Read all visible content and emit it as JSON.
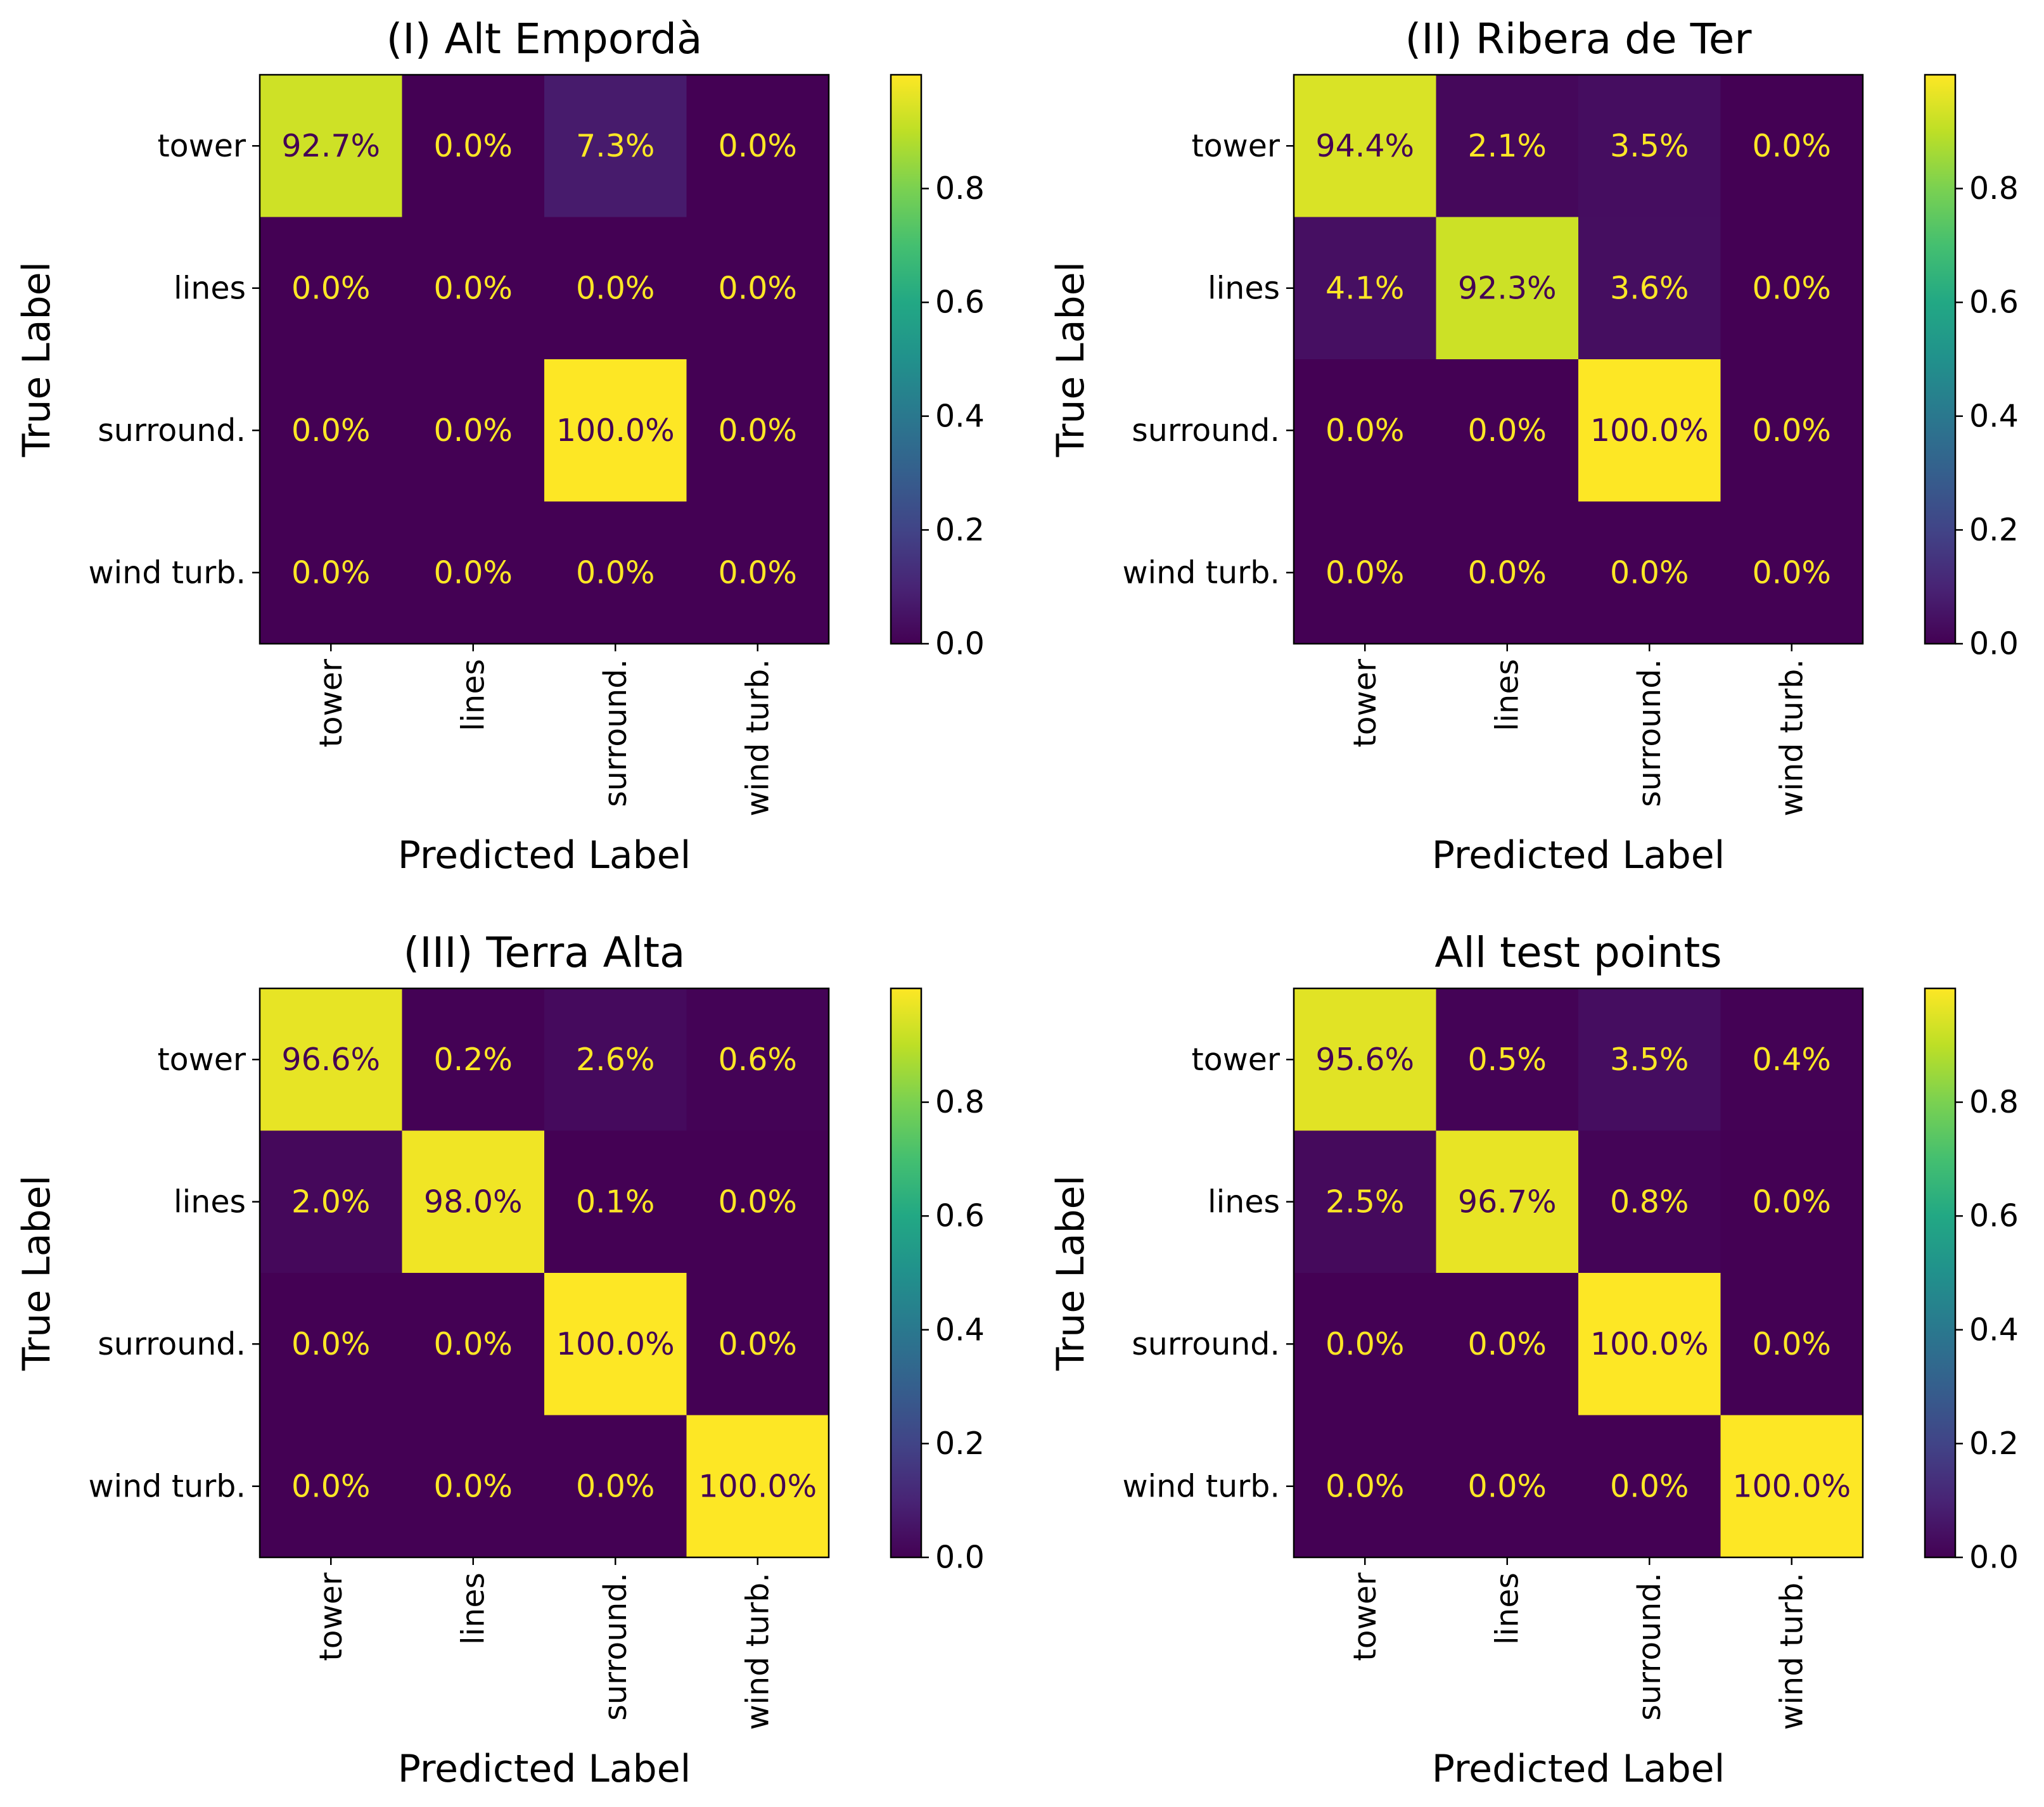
{
  "colormap": "viridis",
  "text_colors": {
    "on_dark": "#fde725",
    "on_light": "#440154"
  },
  "chart_data": [
    {
      "type": "heatmap",
      "title": "(I) Alt Empordà",
      "xlabel": "Predicted Label",
      "ylabel": "True Label",
      "x_categories": [
        "tower",
        "lines",
        "surround.",
        "wind turb."
      ],
      "y_categories": [
        "tower",
        "lines",
        "surround.",
        "wind turb."
      ],
      "values": [
        [
          0.927,
          0.0,
          0.073,
          0.0
        ],
        [
          0.0,
          0.0,
          0.0,
          0.0
        ],
        [
          0.0,
          0.0,
          1.0,
          0.0
        ],
        [
          0.0,
          0.0,
          0.0,
          0.0
        ]
      ],
      "cell_labels": [
        [
          "92.7%",
          "0.0%",
          "7.3%",
          "0.0%"
        ],
        [
          "0.0%",
          "0.0%",
          "0.0%",
          "0.0%"
        ],
        [
          "0.0%",
          "0.0%",
          "100.0%",
          "0.0%"
        ],
        [
          "0.0%",
          "0.0%",
          "0.0%",
          "0.0%"
        ]
      ],
      "colorbar": {
        "range": [
          0,
          1
        ],
        "ticks": [
          "0.0",
          "0.2",
          "0.4",
          "0.6",
          "0.8"
        ]
      }
    },
    {
      "type": "heatmap",
      "title": "(II) Ribera de Ter",
      "xlabel": "Predicted Label",
      "ylabel": "True Label",
      "x_categories": [
        "tower",
        "lines",
        "surround.",
        "wind turb."
      ],
      "y_categories": [
        "tower",
        "lines",
        "surround.",
        "wind turb."
      ],
      "values": [
        [
          0.944,
          0.021,
          0.035,
          0.0
        ],
        [
          0.041,
          0.923,
          0.036,
          0.0
        ],
        [
          0.0,
          0.0,
          1.0,
          0.0
        ],
        [
          0.0,
          0.0,
          0.0,
          0.0
        ]
      ],
      "cell_labels": [
        [
          "94.4%",
          "2.1%",
          "3.5%",
          "0.0%"
        ],
        [
          "4.1%",
          "92.3%",
          "3.6%",
          "0.0%"
        ],
        [
          "0.0%",
          "0.0%",
          "100.0%",
          "0.0%"
        ],
        [
          "0.0%",
          "0.0%",
          "0.0%",
          "0.0%"
        ]
      ],
      "colorbar": {
        "range": [
          0,
          1
        ],
        "ticks": [
          "0.0",
          "0.2",
          "0.4",
          "0.6",
          "0.8"
        ]
      }
    },
    {
      "type": "heatmap",
      "title": "(III) Terra Alta",
      "xlabel": "Predicted Label",
      "ylabel": "True Label",
      "x_categories": [
        "tower",
        "lines",
        "surround.",
        "wind turb."
      ],
      "y_categories": [
        "tower",
        "lines",
        "surround.",
        "wind turb."
      ],
      "values": [
        [
          0.966,
          0.002,
          0.026,
          0.006
        ],
        [
          0.02,
          0.98,
          0.001,
          0.0
        ],
        [
          0.0,
          0.0,
          1.0,
          0.0
        ],
        [
          0.0,
          0.0,
          0.0,
          1.0
        ]
      ],
      "cell_labels": [
        [
          "96.6%",
          "0.2%",
          "2.6%",
          "0.6%"
        ],
        [
          "2.0%",
          "98.0%",
          "0.1%",
          "0.0%"
        ],
        [
          "0.0%",
          "0.0%",
          "100.0%",
          "0.0%"
        ],
        [
          "0.0%",
          "0.0%",
          "0.0%",
          "100.0%"
        ]
      ],
      "colorbar": {
        "range": [
          0,
          1
        ],
        "ticks": [
          "0.0",
          "0.2",
          "0.4",
          "0.6",
          "0.8"
        ]
      }
    },
    {
      "type": "heatmap",
      "title": "All test points",
      "xlabel": "Predicted Label",
      "ylabel": "True Label",
      "x_categories": [
        "tower",
        "lines",
        "surround.",
        "wind turb."
      ],
      "y_categories": [
        "tower",
        "lines",
        "surround.",
        "wind turb."
      ],
      "values": [
        [
          0.956,
          0.005,
          0.035,
          0.004
        ],
        [
          0.025,
          0.967,
          0.008,
          0.0
        ],
        [
          0.0,
          0.0,
          1.0,
          0.0
        ],
        [
          0.0,
          0.0,
          0.0,
          1.0
        ]
      ],
      "cell_labels": [
        [
          "95.6%",
          "0.5%",
          "3.5%",
          "0.4%"
        ],
        [
          "2.5%",
          "96.7%",
          "0.8%",
          "0.0%"
        ],
        [
          "0.0%",
          "0.0%",
          "100.0%",
          "0.0%"
        ],
        [
          "0.0%",
          "0.0%",
          "0.0%",
          "100.0%"
        ]
      ],
      "colorbar": {
        "range": [
          0,
          1
        ],
        "ticks": [
          "0.0",
          "0.2",
          "0.4",
          "0.6",
          "0.8"
        ]
      }
    }
  ]
}
